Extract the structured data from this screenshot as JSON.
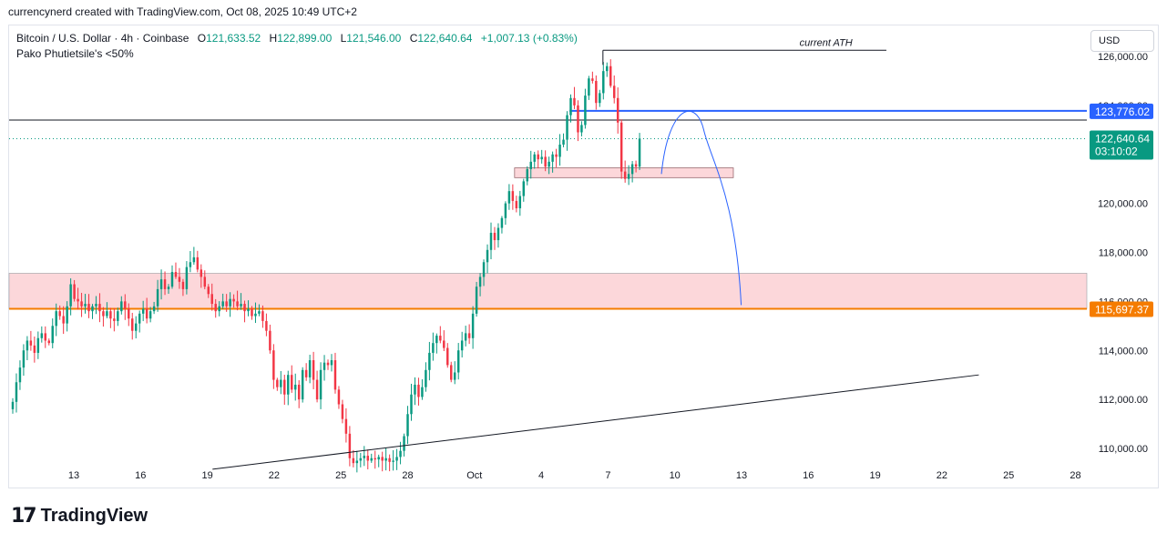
{
  "header": {
    "credit": "currencynerd created with TradingView.com, Oct 08, 2025 10:49 UTC+2"
  },
  "legend": {
    "symbol": "Bitcoin / U.S. Dollar · 4h · Coinbase",
    "open_label": "O",
    "open": "121,633.52",
    "high_label": "H",
    "high": "122,899.00",
    "low_label": "L",
    "low": "121,546.00",
    "close_label": "C",
    "close": "122,640.64",
    "change": "+1,007.13 (+0.83%)",
    "indicator": "Pako Phutietsile's <50%"
  },
  "toolbar": {
    "currency": "USD"
  },
  "footer": {
    "brand": "TradingView"
  },
  "colors": {
    "up": "#089981",
    "down": "#f23645",
    "zone_fill": "#f9c9cd",
    "zone_border": "#e58a93",
    "blue_line": "#2962ff",
    "orange_line": "#f57c00",
    "price_tag": "#089981"
  },
  "chart_data": {
    "type": "candlestick",
    "timeframe": "4h",
    "ylim": [
      109300,
      126900
    ],
    "yticks": [
      "126,000.00",
      "124,000.00",
      "120,000.00",
      "118,000.00",
      "116,000.00",
      "114,000.00",
      "112,000.00",
      "110,000.00"
    ],
    "ytick_values": [
      126000,
      124000,
      120000,
      118000,
      116000,
      114000,
      112000,
      110000
    ],
    "xticks": [
      "13",
      "16",
      "19",
      "22",
      "25",
      "28",
      "Oct",
      "4",
      "7",
      "10",
      "13",
      "16",
      "19",
      "22",
      "25",
      "28"
    ],
    "price_labels": [
      {
        "value": 123776.02,
        "text": "123,776.02",
        "color": "#2962ff"
      },
      {
        "value": 122640.64,
        "text": "122,640.64",
        "sub": "03:10:02",
        "color": "#089981"
      },
      {
        "value": 115697.37,
        "text": "115,697.37",
        "color": "#f57c00"
      }
    ],
    "annotations": {
      "ath_label": "current ATH"
    },
    "levels": {
      "ath": 126250,
      "black_line": 123400,
      "blue_line": 123776.02,
      "orange_line": 115697.37,
      "current": 122640.64
    },
    "zones": [
      {
        "name": "upper",
        "from": 121050,
        "to": 121450
      },
      {
        "name": "lower",
        "from": 115697.37,
        "to": 117150
      }
    ],
    "trendline": {
      "from": [
        0.22,
        109150
      ],
      "to": [
        0.915,
        113000
      ]
    },
    "projection": [
      [
        0.716,
        121200
      ],
      [
        0.74,
        123750
      ],
      [
        0.79,
        115850
      ]
    ],
    "closes": [
      111900,
      112700,
      113300,
      114000,
      114400,
      114200,
      113900,
      114500,
      114700,
      114400,
      114300,
      115000,
      115600,
      115400,
      115100,
      115800,
      116700,
      116100,
      116000,
      115800,
      115900,
      115600,
      115800,
      115900,
      115600,
      115400,
      115600,
      115300,
      115200,
      115600,
      116000,
      115700,
      115300,
      114800,
      115100,
      115500,
      115700,
      115300,
      115600,
      115800,
      116500,
      116900,
      116500,
      116600,
      117200,
      117000,
      116800,
      116500,
      117400,
      117600,
      117800,
      117300,
      117000,
      116600,
      116300,
      115900,
      115600,
      115800,
      116000,
      115800,
      116100,
      116000,
      115800,
      115900,
      115600,
      115700,
      115400,
      115500,
      115600,
      115200,
      114800,
      114000,
      112800,
      112500,
      112800,
      112200,
      113000,
      112400,
      112600,
      112000,
      113200,
      112900,
      113600,
      112800,
      112000,
      113200,
      113500,
      113400,
      113600,
      112400,
      111800,
      111200,
      110600,
      109600,
      109400,
      109500,
      109600,
      109700,
      109500,
      109600,
      109550,
      109650,
      109500,
      109600,
      109450,
      109500,
      109650,
      109900,
      110500,
      111400,
      112200,
      112600,
      112100,
      112500,
      113200,
      113900,
      114300,
      114600,
      114400,
      114100,
      113400,
      112800,
      113100,
      114000,
      114400,
      114700,
      114500,
      115500,
      116600,
      117000,
      117600,
      118100,
      118800,
      118500,
      119000,
      119400,
      120000,
      120500,
      120100,
      119800,
      120300,
      120900,
      121400,
      121700,
      122000,
      121800,
      121900,
      121500,
      121700,
      122000,
      121900,
      122400,
      122600,
      123600,
      124300,
      124000,
      122900,
      123200,
      124400,
      125100,
      125000,
      124100,
      124500,
      125400,
      125600,
      124800,
      124300,
      123300,
      121300,
      121000,
      121200,
      121600,
      121500,
      122640
    ]
  }
}
